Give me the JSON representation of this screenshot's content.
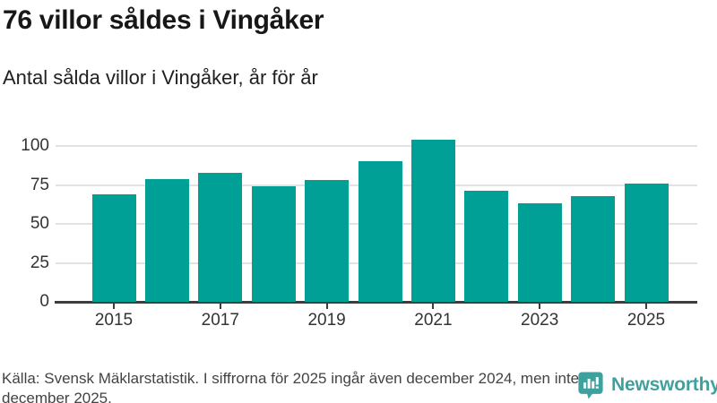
{
  "header": {
    "title": "76 villor såldes i Vingåker",
    "subtitle": "Antal sålda villor i Vingåker, år för år"
  },
  "chart_data": {
    "type": "bar",
    "categories": [
      "2015",
      "2016",
      "2017",
      "2018",
      "2019",
      "2020",
      "2021",
      "2022",
      "2023",
      "2024",
      "2025"
    ],
    "values": [
      69,
      79,
      83,
      74,
      78,
      90,
      104,
      71,
      63,
      68,
      76
    ],
    "title": "76 villor såldes i Vingåker",
    "subtitle": "Antal sålda villor i Vingåker, år för år",
    "xlabel": "",
    "ylabel": "",
    "y_ticks": [
      0,
      25,
      50,
      75,
      100
    ],
    "ylim": [
      0,
      113
    ],
    "x_tick_labels": [
      "2015",
      "2017",
      "2019",
      "2021",
      "2023",
      "2025"
    ],
    "grid": "horizontal",
    "legend": "none",
    "bar_color": "#00a096"
  },
  "footer": {
    "source_note": "Källa: Svensk Mäklarstatistik. I siffrorna för 2025 ingår även december 2024, men inte december 2025."
  },
  "branding": {
    "logo_text": "Newsworthy",
    "logo_icon": "newsworthy-chart-bubble-icon",
    "logo_color": "#3fa19e"
  }
}
